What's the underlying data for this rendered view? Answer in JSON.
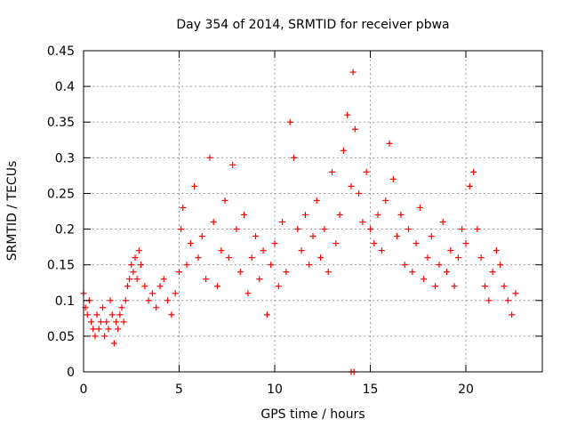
{
  "chart_data": {
    "type": "scatter",
    "title": "Day 354 of 2014, SRMTID for receiver pbwa",
    "xlabel": "GPS time / hours",
    "ylabel": "SRMTID / TECUs",
    "xlim": [
      0,
      24
    ],
    "ylim": [
      0,
      0.45
    ],
    "xticks": [
      0,
      5,
      10,
      15,
      20
    ],
    "xtick_labels": [
      "0",
      "5",
      "10",
      "15",
      "20"
    ],
    "yticks": [
      0,
      0.05,
      0.1,
      0.15,
      0.2,
      0.25,
      0.3,
      0.35,
      0.4,
      0.45
    ],
    "ytick_labels": [
      "0",
      "0.05",
      "0.1",
      "0.15",
      "0.2",
      "0.25",
      "0.3",
      "0.35",
      "0.4",
      "0.45"
    ],
    "grid": true,
    "marker": "+",
    "marker_color": "#ff0000",
    "series": [
      {
        "name": "pbwa",
        "points": [
          [
            0.0,
            0.11
          ],
          [
            0.1,
            0.09
          ],
          [
            0.2,
            0.08
          ],
          [
            0.3,
            0.1
          ],
          [
            0.4,
            0.07
          ],
          [
            0.5,
            0.06
          ],
          [
            0.6,
            0.05
          ],
          [
            0.7,
            0.08
          ],
          [
            0.8,
            0.06
          ],
          [
            0.9,
            0.07
          ],
          [
            1.0,
            0.09
          ],
          [
            1.1,
            0.05
          ],
          [
            1.2,
            0.07
          ],
          [
            1.3,
            0.06
          ],
          [
            1.4,
            0.1
          ],
          [
            1.5,
            0.08
          ],
          [
            1.6,
            0.04
          ],
          [
            1.7,
            0.07
          ],
          [
            1.8,
            0.06
          ],
          [
            1.9,
            0.08
          ],
          [
            2.0,
            0.09
          ],
          [
            2.1,
            0.07
          ],
          [
            2.2,
            0.1
          ],
          [
            2.3,
            0.12
          ],
          [
            2.4,
            0.13
          ],
          [
            2.5,
            0.15
          ],
          [
            2.6,
            0.14
          ],
          [
            2.7,
            0.16
          ],
          [
            2.8,
            0.13
          ],
          [
            2.9,
            0.17
          ],
          [
            3.0,
            0.15
          ],
          [
            3.2,
            0.12
          ],
          [
            3.4,
            0.1
          ],
          [
            3.6,
            0.11
          ],
          [
            3.8,
            0.09
          ],
          [
            4.0,
            0.12
          ],
          [
            4.2,
            0.13
          ],
          [
            4.4,
            0.1
          ],
          [
            4.6,
            0.08
          ],
          [
            4.8,
            0.11
          ],
          [
            5.0,
            0.14
          ],
          [
            5.1,
            0.2
          ],
          [
            5.2,
            0.23
          ],
          [
            5.4,
            0.15
          ],
          [
            5.6,
            0.18
          ],
          [
            5.8,
            0.26
          ],
          [
            6.0,
            0.16
          ],
          [
            6.2,
            0.19
          ],
          [
            6.4,
            0.13
          ],
          [
            6.6,
            0.3
          ],
          [
            6.8,
            0.21
          ],
          [
            7.0,
            0.12
          ],
          [
            7.2,
            0.17
          ],
          [
            7.4,
            0.24
          ],
          [
            7.6,
            0.16
          ],
          [
            7.8,
            0.29
          ],
          [
            8.0,
            0.2
          ],
          [
            8.2,
            0.14
          ],
          [
            8.4,
            0.22
          ],
          [
            8.6,
            0.11
          ],
          [
            8.8,
            0.16
          ],
          [
            9.0,
            0.19
          ],
          [
            9.2,
            0.13
          ],
          [
            9.4,
            0.17
          ],
          [
            9.6,
            0.08
          ],
          [
            9.8,
            0.15
          ],
          [
            10.0,
            0.18
          ],
          [
            10.2,
            0.12
          ],
          [
            10.4,
            0.21
          ],
          [
            10.6,
            0.14
          ],
          [
            10.8,
            0.35
          ],
          [
            11.0,
            0.3
          ],
          [
            11.2,
            0.2
          ],
          [
            11.4,
            0.17
          ],
          [
            11.6,
            0.22
          ],
          [
            11.8,
            0.15
          ],
          [
            12.0,
            0.19
          ],
          [
            12.2,
            0.24
          ],
          [
            12.4,
            0.16
          ],
          [
            12.6,
            0.2
          ],
          [
            12.8,
            0.14
          ],
          [
            13.0,
            0.28
          ],
          [
            13.2,
            0.18
          ],
          [
            13.4,
            0.22
          ],
          [
            13.6,
            0.31
          ],
          [
            13.8,
            0.36
          ],
          [
            14.0,
            0.26
          ],
          [
            14.1,
            0.42
          ],
          [
            14.2,
            0.34
          ],
          [
            14.4,
            0.25
          ],
          [
            14.6,
            0.21
          ],
          [
            14.8,
            0.28
          ],
          [
            15.0,
            0.2
          ],
          [
            15.2,
            0.18
          ],
          [
            15.4,
            0.22
          ],
          [
            15.6,
            0.17
          ],
          [
            15.8,
            0.24
          ],
          [
            16.0,
            0.32
          ],
          [
            16.2,
            0.27
          ],
          [
            16.4,
            0.19
          ],
          [
            16.6,
            0.22
          ],
          [
            16.8,
            0.15
          ],
          [
            17.0,
            0.2
          ],
          [
            17.2,
            0.14
          ],
          [
            17.4,
            0.18
          ],
          [
            17.6,
            0.23
          ],
          [
            17.8,
            0.13
          ],
          [
            18.0,
            0.16
          ],
          [
            18.2,
            0.19
          ],
          [
            18.4,
            0.12
          ],
          [
            18.6,
            0.15
          ],
          [
            18.8,
            0.21
          ],
          [
            19.0,
            0.14
          ],
          [
            19.2,
            0.17
          ],
          [
            19.4,
            0.12
          ],
          [
            19.6,
            0.16
          ],
          [
            19.8,
            0.2
          ],
          [
            20.0,
            0.18
          ],
          [
            20.2,
            0.26
          ],
          [
            20.4,
            0.28
          ],
          [
            20.6,
            0.2
          ],
          [
            20.8,
            0.16
          ],
          [
            21.0,
            0.12
          ],
          [
            21.2,
            0.1
          ],
          [
            21.4,
            0.14
          ],
          [
            21.6,
            0.17
          ],
          [
            21.8,
            0.15
          ],
          [
            22.0,
            0.12
          ],
          [
            22.2,
            0.1
          ],
          [
            22.4,
            0.08
          ],
          [
            22.6,
            0.11
          ],
          [
            14.0,
            0.0
          ],
          [
            14.15,
            0.0
          ]
        ]
      }
    ]
  }
}
